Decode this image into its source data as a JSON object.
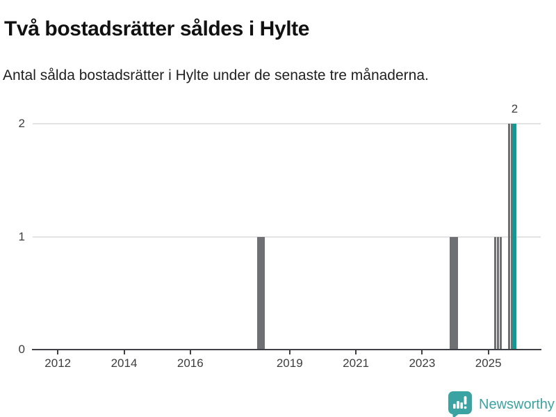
{
  "header": {
    "title": "Två bostadsrätter såldes i Hylte",
    "subtitle": "Antal sålda bostadsrätter i Hylte under de senaste tre månaderna."
  },
  "chart_data": {
    "type": "bar",
    "title": "Två bostadsrätter såldes i Hylte",
    "subtitle": "Antal sålda bostadsrätter i Hylte under de senaste tre månaderna.",
    "xlabel": "",
    "ylabel": "",
    "xlim": [
      2011.24,
      2026.57
    ],
    "ylim": [
      0,
      2
    ],
    "x_ticks": [
      "2012",
      "2014",
      "2016",
      "2019",
      "2021",
      "2023",
      "2025"
    ],
    "x_tick_positions": [
      2012,
      2014,
      2016,
      2019,
      2021,
      2023,
      2025
    ],
    "y_ticks": [
      "0",
      "1",
      "2"
    ],
    "y_tick_values": [
      0,
      1,
      2
    ],
    "grid": "horizontal",
    "legend": "none",
    "bar_color": "#6e7074",
    "highlight_color": "#0f9b94",
    "bars": [
      {
        "month": "2018-01",
        "x": 2018.042,
        "value": 1
      },
      {
        "month": "2018-02",
        "x": 2018.125,
        "value": 1
      },
      {
        "month": "2018-03",
        "x": 2018.208,
        "value": 1
      },
      {
        "month": "2023-11",
        "x": 2023.875,
        "value": 1
      },
      {
        "month": "2023-12",
        "x": 2023.958,
        "value": 1
      },
      {
        "month": "2024-01",
        "x": 2024.042,
        "value": 1
      },
      {
        "month": "2025-03",
        "x": 2025.208,
        "value": 1
      },
      {
        "month": "2025-04",
        "x": 2025.292,
        "value": 1
      },
      {
        "month": "2025-05",
        "x": 2025.375,
        "value": 1
      },
      {
        "month": "2025-08",
        "x": 2025.625,
        "value": 2
      },
      {
        "month": "2025-09",
        "x": 2025.708,
        "value": 2
      },
      {
        "month": "2025-10",
        "x": 2025.792,
        "value": 2,
        "highlight": true
      }
    ],
    "annotation": {
      "text": "2",
      "x": 2025.792,
      "value": 2
    }
  },
  "footer": {
    "brand": "Newsworthy",
    "brand_color": "#3ba3a1"
  },
  "colors": {
    "background": "#ffffff",
    "title": "#111111",
    "subtitle": "#1f1f1f",
    "axis_line": "#3f4045",
    "gridline": "#e3e3e3",
    "tick_label": "#3d3d3d",
    "bar_gray": "#6e7074",
    "bar_teal": "#0f9b94",
    "logo_teal": "#3ba3a1"
  }
}
